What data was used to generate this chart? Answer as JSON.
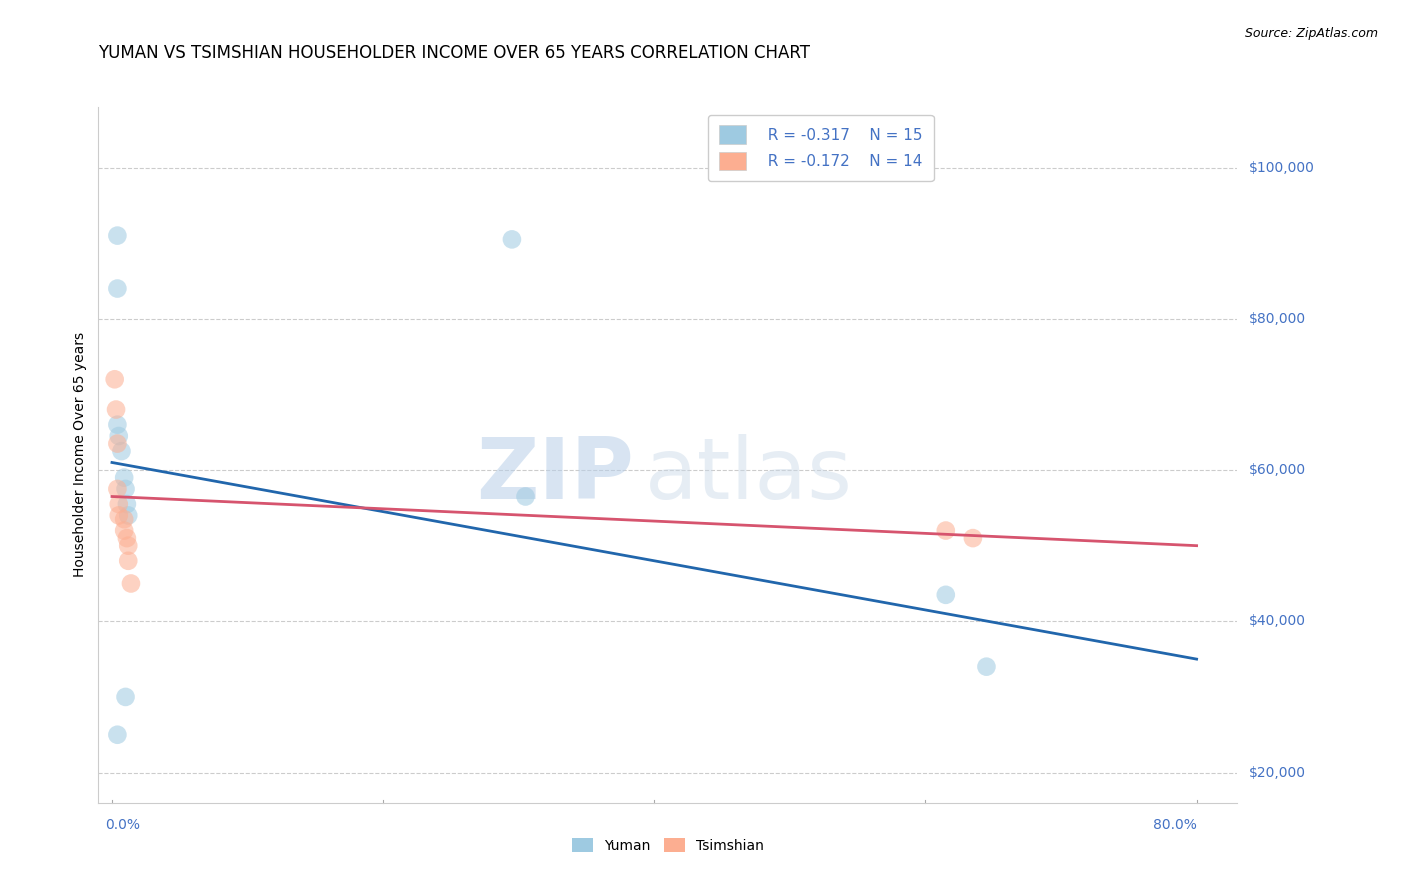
{
  "title": "YUMAN VS TSIMSHIAN HOUSEHOLDER INCOME OVER 65 YEARS CORRELATION CHART",
  "source": "Source: ZipAtlas.com",
  "ylabel": "Householder Income Over 65 years",
  "ytick_labels": [
    "$20,000",
    "$40,000",
    "$60,000",
    "$80,000",
    "$100,000"
  ],
  "ytick_values": [
    20000,
    40000,
    60000,
    80000,
    100000
  ],
  "ymin": 16000,
  "ymax": 108000,
  "xmin": -0.01,
  "xmax": 0.83,
  "legend_blue_r": "R = -0.317",
  "legend_blue_n": "N = 15",
  "legend_pink_r": "R = -0.172",
  "legend_pink_n": "N = 14",
  "watermark_zip": "ZIP",
  "watermark_atlas": "atlas",
  "blue_color": "#9ecae1",
  "pink_color": "#fcae91",
  "blue_line_color": "#2166ac",
  "pink_line_color": "#d6546e",
  "legend_blue_label": "Yuman",
  "legend_pink_label": "Tsimshian",
  "yuman_x": [
    0.004,
    0.004,
    0.004,
    0.005,
    0.007,
    0.009,
    0.01,
    0.011,
    0.012,
    0.295,
    0.305,
    0.615,
    0.645,
    0.01,
    0.004
  ],
  "yuman_y": [
    91000,
    84000,
    66000,
    64500,
    62500,
    59000,
    57500,
    55500,
    54000,
    90500,
    56500,
    43500,
    34000,
    30000,
    25000
  ],
  "tsimshian_x": [
    0.002,
    0.003,
    0.004,
    0.004,
    0.005,
    0.005,
    0.009,
    0.009,
    0.011,
    0.012,
    0.012,
    0.014,
    0.615,
    0.635
  ],
  "tsimshian_y": [
    72000,
    68000,
    63500,
    57500,
    55500,
    54000,
    53500,
    52000,
    51000,
    50000,
    48000,
    45000,
    52000,
    51000
  ],
  "blue_trendline_x": [
    0.0,
    0.8
  ],
  "blue_trendline_y": [
    61000,
    35000
  ],
  "pink_trendline_x": [
    0.0,
    0.8
  ],
  "pink_trendline_y": [
    56500,
    50000
  ],
  "grid_color": "#cccccc",
  "background_color": "#ffffff",
  "title_fontsize": 12,
  "label_fontsize": 10,
  "tick_fontsize": 10,
  "dot_size": 180,
  "dot_alpha": 0.55
}
